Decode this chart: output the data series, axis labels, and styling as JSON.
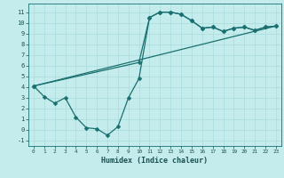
{
  "xlabel": "Humidex (Indice chaleur)",
  "bg_color": "#c5ecec",
  "grid_color": "#a8dcdc",
  "line_color": "#1a7070",
  "xlim": [
    -0.5,
    23.5
  ],
  "ylim": [
    -1.5,
    11.8
  ],
  "xticks": [
    0,
    1,
    2,
    3,
    4,
    5,
    6,
    7,
    8,
    9,
    10,
    11,
    12,
    13,
    14,
    15,
    16,
    17,
    18,
    19,
    20,
    21,
    22,
    23
  ],
  "yticks": [
    -1,
    0,
    1,
    2,
    3,
    4,
    5,
    6,
    7,
    8,
    9,
    10,
    11
  ],
  "curve1_x": [
    0,
    1,
    2,
    3,
    4,
    5,
    6,
    7,
    8,
    9,
    10,
    11,
    12,
    13,
    14,
    15,
    16,
    17,
    18,
    19,
    20,
    21,
    22,
    23
  ],
  "curve1_y": [
    4.1,
    3.1,
    2.5,
    3.0,
    1.2,
    0.2,
    0.1,
    -0.5,
    0.3,
    3.0,
    4.8,
    10.5,
    11.0,
    11.0,
    10.8,
    10.2,
    9.5,
    9.6,
    9.2,
    9.5,
    9.6,
    9.3,
    9.6,
    9.7
  ],
  "curve2_x": [
    0,
    10,
    11,
    12,
    13,
    14,
    15,
    16,
    17,
    18,
    19,
    20,
    21,
    22,
    23
  ],
  "curve2_y": [
    4.1,
    6.3,
    10.5,
    11.0,
    11.0,
    10.8,
    10.2,
    9.5,
    9.6,
    9.2,
    9.5,
    9.6,
    9.3,
    9.6,
    9.7
  ],
  "line3_x": [
    0,
    23
  ],
  "line3_y": [
    4.1,
    9.7
  ],
  "marker_size": 2.5,
  "line_width": 0.9,
  "tick_fontsize_x": 4.3,
  "tick_fontsize_y": 5.0,
  "xlabel_fontsize": 6.0
}
